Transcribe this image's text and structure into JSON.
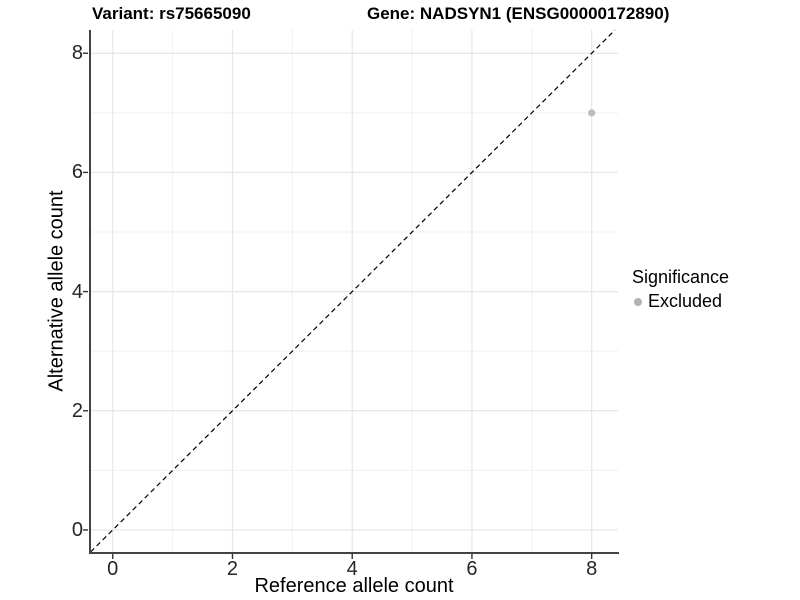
{
  "titles": {
    "left": "Variant: rs75665090",
    "right": "Gene: NADSYN1 (ENSG00000172890)"
  },
  "chart_data": {
    "type": "scatter",
    "title_left": "Variant: rs75665090",
    "title_right": "Gene: NADSYN1 (ENSG00000172890)",
    "xlabel": "Reference allele count",
    "ylabel": "Alternative allele count",
    "xlim": [
      -0.38,
      8.44
    ],
    "ylim": [
      -0.37,
      8.39
    ],
    "x_major_ticks": [
      0,
      2,
      4,
      6,
      8
    ],
    "y_major_ticks": [
      0,
      2,
      4,
      6,
      8
    ],
    "x_minor_gridlines": [
      1,
      3,
      5,
      7
    ],
    "y_minor_gridlines": [
      1,
      3,
      5,
      7
    ],
    "grid": true,
    "identity_line": {
      "type": "dashed",
      "slope": 1,
      "intercept": 0,
      "color": "#000000"
    },
    "series": [
      {
        "name": "Excluded",
        "color": "#bdbdbd",
        "points": [
          {
            "x": 8,
            "y": 7
          }
        ]
      }
    ],
    "legend": {
      "title": "Significance",
      "position": "right",
      "entries": [
        {
          "label": "Excluded",
          "color": "#b3b3b3"
        }
      ]
    },
    "colors": {
      "major_grid": "#e6e6e6",
      "minor_grid": "#f0f0f0",
      "axis_line": "#424242",
      "tick_mark": "#333333",
      "background": "#ffffff"
    }
  }
}
